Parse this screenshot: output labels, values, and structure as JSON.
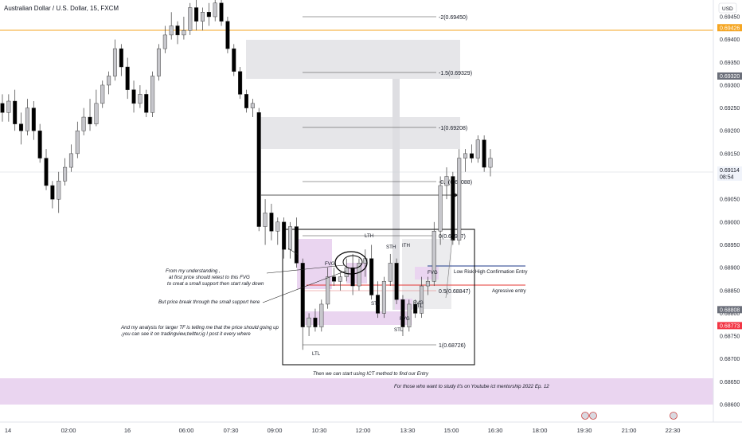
{
  "header": {
    "symbol_title": "Australian Dollar / U.S. Dollar, 15, FXCM"
  },
  "price_axis": {
    "currency": "USD",
    "ticks": [
      "0.69450",
      "0.69400",
      "0.69350",
      "0.69300",
      "0.69250",
      "0.69200",
      "0.69150",
      "0.69100",
      "0.69050",
      "0.69000",
      "0.68950",
      "0.68900",
      "0.68850",
      "0.68800",
      "0.68750",
      "0.68700",
      "0.68650",
      "0.68600"
    ],
    "markers": [
      {
        "label": "0.69426",
        "bg": "#f5a623",
        "fg": "#ffffff"
      },
      {
        "label": "0.69320",
        "bg": "#6b6f7a",
        "fg": "#ffffff"
      },
      {
        "label": "0.69114",
        "sub": "08:54",
        "bg": "#f0f3fa",
        "fg": "#131722"
      },
      {
        "label": "0.68808",
        "bg": "#6b6f7a",
        "fg": "#ffffff"
      },
      {
        "label": "0.68773",
        "bg": "#f23645",
        "fg": "#ffffff"
      }
    ]
  },
  "time_axis": {
    "ticks": [
      "14",
      "02:00",
      "16",
      "06:00",
      "07:30",
      "09:00",
      "10:30",
      "12:00",
      "13:30",
      "15:00",
      "16:30",
      "18:00",
      "19:30",
      "21:00",
      "22:30"
    ]
  },
  "fib_levels": [
    "-2(0.69450)",
    "-1.5(0.69329)",
    "-1(0.69208)",
    "-0.5(0.69088)",
    "0(0.68967)",
    "0.5(0.68847)",
    "1(0.68726)"
  ],
  "structure_labels": {
    "lth": "LTH",
    "sth": "STH",
    "ith": "ITH",
    "stl1": "STL",
    "stl2": "STL",
    "itl": "ITL",
    "ltl": "LTL",
    "fvg1": "FVG",
    "fvg2": "FVG",
    "fvg3": "FVG",
    "fvg4": "FVG"
  },
  "entries": {
    "low_risk": "Low Risk High Confirmation Entry",
    "aggressive": "Agressive entry"
  },
  "notes": {
    "n1_l1": "From my understanding ,",
    "n1_l2": "at first price should retest to this FVG",
    "n1_l3": "to creat a small support then start rally down",
    "n2": "But price break through the small support here",
    "n3_l1": "And my analysis for larger TF is telling me that the price should going up",
    "n3_l2": ",you can see it on tradingview,twitter,ig I post it every where",
    "n4": "Then we can start using ICT method to find our Entry",
    "n5": "For those who want to study it's on Youtube ict mentorship 2022 Ep. 12"
  },
  "colors": {
    "bull": "#c7c7cc",
    "bear": "#000000",
    "wick": "#3a3a3a",
    "orange_line": "#f5a623",
    "blue_line": "#1e3a8a",
    "red_line": "#e53935",
    "gray_zone": "#e6e6e9",
    "pink_zone": "#ead5f0"
  },
  "chart_data": {
    "type": "candlestick",
    "title": "Australian Dollar / U.S. Dollar, 15, FXCM",
    "ylim": [
      0.68575,
      0.69485
    ],
    "note": "approximate OHLC read from the chart, in order of appearance",
    "candles": [
      [
        0.6926,
        0.6928,
        0.6922,
        0.6924
      ],
      [
        0.6924,
        0.6928,
        0.6922,
        0.69265
      ],
      [
        0.69265,
        0.6929,
        0.692,
        0.69215
      ],
      [
        0.69215,
        0.6924,
        0.6917,
        0.692
      ],
      [
        0.692,
        0.6927,
        0.6919,
        0.6925
      ],
      [
        0.6925,
        0.69265,
        0.6918,
        0.692
      ],
      [
        0.692,
        0.69215,
        0.6913,
        0.6914
      ],
      [
        0.6914,
        0.6916,
        0.6907,
        0.6908
      ],
      [
        0.6908,
        0.6909,
        0.6903,
        0.6905
      ],
      [
        0.6905,
        0.6911,
        0.6902,
        0.6909
      ],
      [
        0.6909,
        0.6914,
        0.6908,
        0.6912
      ],
      [
        0.6912,
        0.6917,
        0.6911,
        0.6915
      ],
      [
        0.6915,
        0.6922,
        0.6914,
        0.692
      ],
      [
        0.692,
        0.6925,
        0.6919,
        0.6923
      ],
      [
        0.6923,
        0.6927,
        0.692,
        0.69215
      ],
      [
        0.69215,
        0.6929,
        0.6921,
        0.6926
      ],
      [
        0.6926,
        0.6931,
        0.6925,
        0.693
      ],
      [
        0.693,
        0.6933,
        0.6928,
        0.6932
      ],
      [
        0.6932,
        0.694,
        0.6931,
        0.6938
      ],
      [
        0.6938,
        0.6939,
        0.6932,
        0.6934
      ],
      [
        0.6934,
        0.6936,
        0.6927,
        0.6929
      ],
      [
        0.6929,
        0.6931,
        0.6924,
        0.6926
      ],
      [
        0.6926,
        0.693,
        0.6925,
        0.6928
      ],
      [
        0.6928,
        0.6929,
        0.6923,
        0.6924
      ],
      [
        0.6924,
        0.6933,
        0.6923,
        0.6932
      ],
      [
        0.6932,
        0.6939,
        0.6931,
        0.6938
      ],
      [
        0.6938,
        0.6943,
        0.6937,
        0.6941
      ],
      [
        0.6941,
        0.6946,
        0.694,
        0.6943
      ],
      [
        0.6943,
        0.6944,
        0.6939,
        0.6941
      ],
      [
        0.6941,
        0.6945,
        0.694,
        0.6942
      ],
      [
        0.6942,
        0.6948,
        0.6941,
        0.6947
      ],
      [
        0.6947,
        0.6949,
        0.6942,
        0.6944
      ],
      [
        0.6944,
        0.6947,
        0.6942,
        0.6946
      ],
      [
        0.6946,
        0.6948,
        0.6943,
        0.6945
      ],
      [
        0.6945,
        0.6949,
        0.6944,
        0.6948
      ],
      [
        0.6948,
        0.6949,
        0.6943,
        0.6944
      ],
      [
        0.6944,
        0.6945,
        0.6937,
        0.6938
      ],
      [
        0.6938,
        0.6939,
        0.6932,
        0.6933
      ],
      [
        0.6933,
        0.6934,
        0.6927,
        0.6928
      ],
      [
        0.6928,
        0.6929,
        0.6924,
        0.6925
      ],
      [
        0.6925,
        0.6927,
        0.6923,
        0.6926
      ],
      [
        0.6924,
        0.6925,
        0.6898,
        0.6899
      ],
      [
        0.6899,
        0.6905,
        0.6895,
        0.6902
      ],
      [
        0.6902,
        0.6904,
        0.6896,
        0.6898
      ],
      [
        0.6898,
        0.6901,
        0.6895,
        0.69
      ],
      [
        0.69,
        0.6901,
        0.6892,
        0.6894
      ],
      [
        0.6894,
        0.69,
        0.6892,
        0.6899
      ],
      [
        0.6899,
        0.6901,
        0.689,
        0.6891
      ],
      [
        0.6891,
        0.6892,
        0.6872,
        0.6877
      ],
      [
        0.6877,
        0.688,
        0.6875,
        0.6879
      ],
      [
        0.6879,
        0.6881,
        0.6876,
        0.6877
      ],
      [
        0.6877,
        0.6883,
        0.6876,
        0.6882
      ],
      [
        0.6882,
        0.689,
        0.6881,
        0.6888
      ],
      [
        0.6888,
        0.689,
        0.6886,
        0.6887
      ],
      [
        0.6887,
        0.6889,
        0.6885,
        0.6888
      ],
      [
        0.6888,
        0.6892,
        0.6887,
        0.689
      ],
      [
        0.689,
        0.6893,
        0.6884,
        0.6886
      ],
      [
        0.6886,
        0.6892,
        0.6885,
        0.6891
      ],
      [
        0.6891,
        0.6894,
        0.6888,
        0.6892
      ],
      [
        0.6892,
        0.6895,
        0.6883,
        0.6884
      ],
      [
        0.6884,
        0.6887,
        0.6879,
        0.688
      ],
      [
        0.688,
        0.6888,
        0.6879,
        0.6887
      ],
      [
        0.6887,
        0.6893,
        0.6886,
        0.6891
      ],
      [
        0.6891,
        0.6892,
        0.6882,
        0.6883
      ],
      [
        0.6883,
        0.6884,
        0.6875,
        0.6877
      ],
      [
        0.6877,
        0.6883,
        0.6876,
        0.6882
      ],
      [
        0.6882,
        0.6883,
        0.6879,
        0.688
      ],
      [
        0.688,
        0.6888,
        0.6879,
        0.6886
      ],
      [
        0.6886,
        0.6888,
        0.6884,
        0.6887
      ],
      [
        0.6887,
        0.69,
        0.6886,
        0.6898
      ],
      [
        0.6898,
        0.691,
        0.6895,
        0.6908
      ],
      [
        0.6908,
        0.6912,
        0.6905,
        0.691
      ],
      [
        0.691,
        0.6911,
        0.6895,
        0.6896
      ],
      [
        0.6896,
        0.6916,
        0.6895,
        0.6914
      ],
      [
        0.6914,
        0.6916,
        0.6911,
        0.6915
      ],
      [
        0.6915,
        0.6917,
        0.6913,
        0.6914
      ],
      [
        0.6914,
        0.6919,
        0.6913,
        0.6918
      ],
      [
        0.6918,
        0.6919,
        0.6911,
        0.6912
      ],
      [
        0.6912,
        0.6916,
        0.691,
        0.6914
      ]
    ]
  }
}
